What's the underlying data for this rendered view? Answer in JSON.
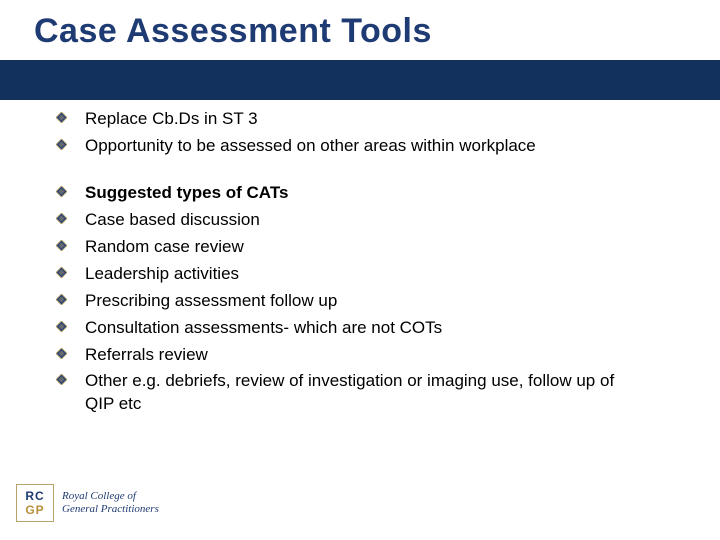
{
  "slide": {
    "title": "Case Assessment Tools",
    "title_color": "#1f3b73",
    "title_fontsize": 34,
    "band_color": "#12315c",
    "background_color": "#ffffff",
    "body_fontsize": 17,
    "body_color": "#000000",
    "bullet": {
      "fill": "#1f3b73",
      "stroke": "#b8a36c",
      "size": 11
    },
    "groups": [
      {
        "items": [
          {
            "text": "Replace Cb.Ds in ST 3",
            "bold": false
          },
          {
            "text": "Opportunity to be assessed on other areas within workplace",
            "bold": false
          }
        ]
      },
      {
        "items": [
          {
            "text": "Suggested types of CATs",
            "bold": true
          },
          {
            "text": "Case based discussion",
            "bold": false
          },
          {
            "text": "Random case review",
            "bold": false
          },
          {
            "text": "Leadership activities",
            "bold": false
          },
          {
            "text": "Prescribing assessment follow up",
            "bold": false
          },
          {
            "text": "Consultation assessments- which are not  COTs",
            "bold": false
          },
          {
            "text": "Referrals review",
            "bold": false
          },
          {
            "text": "Other e.g. debriefs, review of investigation or imaging use, follow up of QIP etc",
            "bold": false
          }
        ]
      }
    ]
  },
  "logo": {
    "top": "RC",
    "bottom": "GP",
    "line1": "Royal College of",
    "line2": "General Practitioners",
    "box_border": "#b8a36c",
    "rc_color": "#1f3b73",
    "gp_color": "#b8903a",
    "text_color": "#1f3b73"
  }
}
